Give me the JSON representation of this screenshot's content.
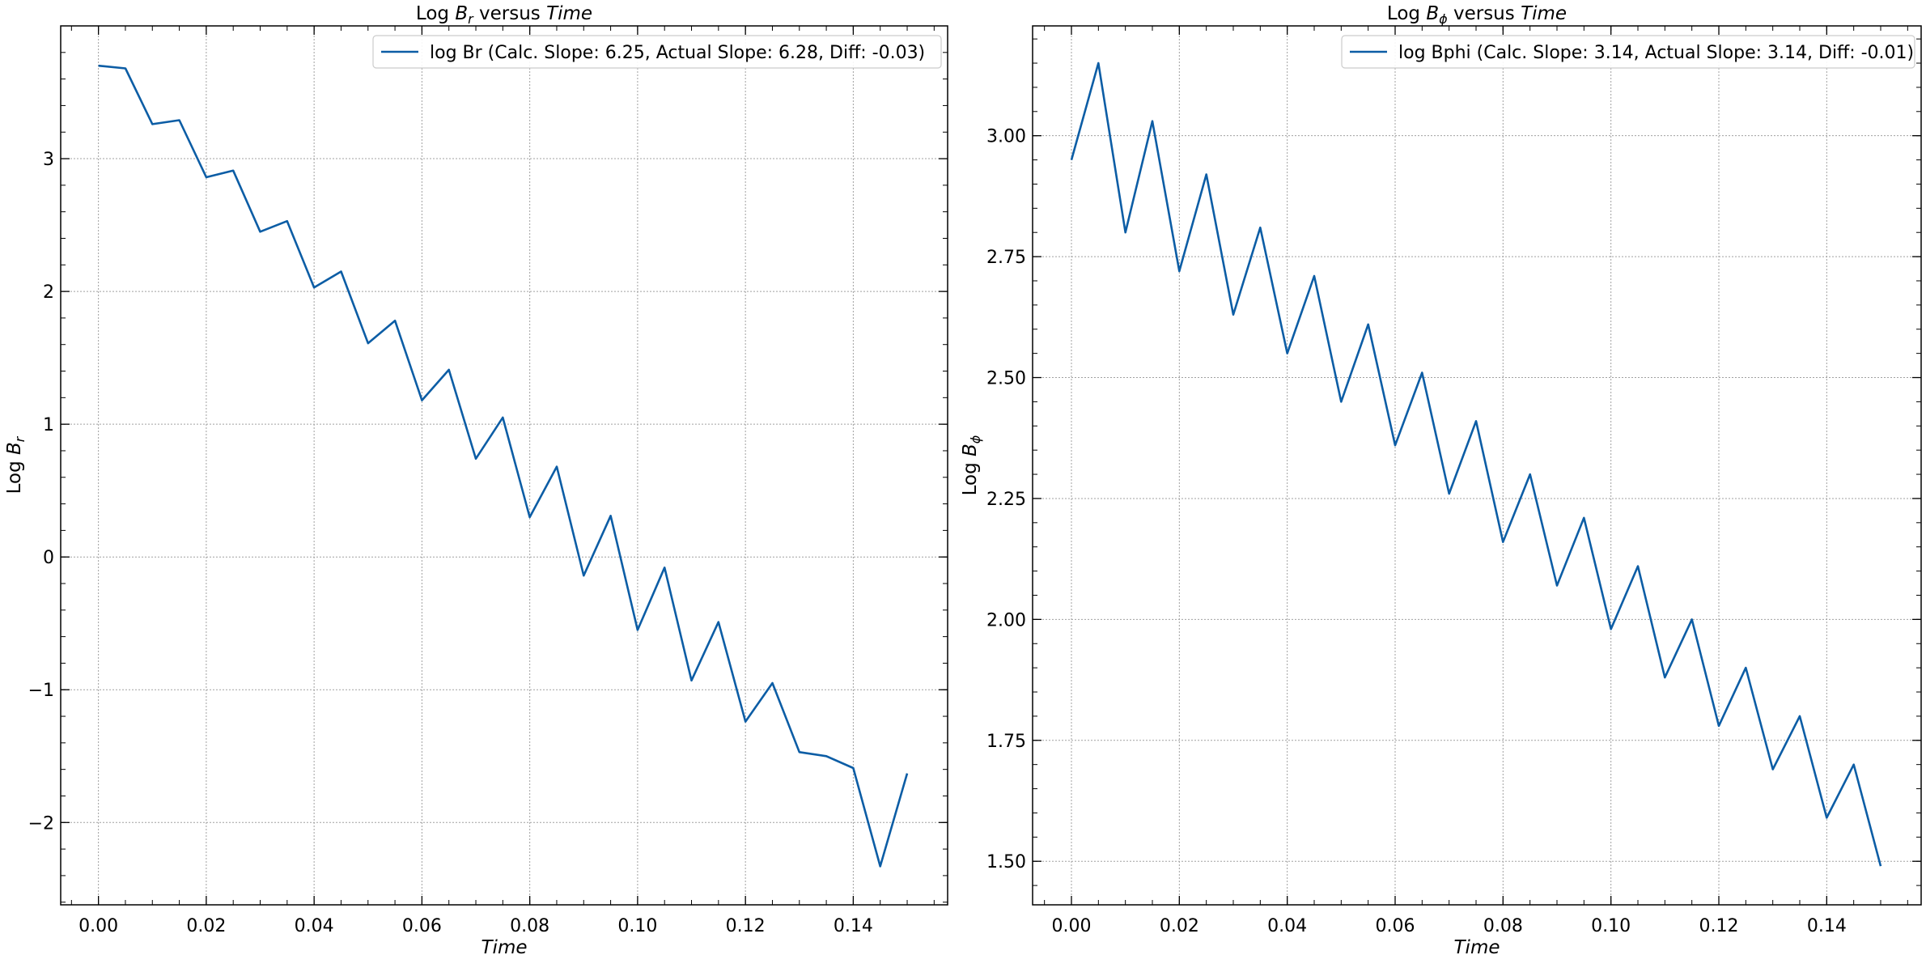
{
  "chart_data": [
    {
      "type": "line",
      "title": {
        "prefix": "Log ",
        "sym": "B",
        "sub": "r",
        "mid": " versus ",
        "italic": "Time"
      },
      "xlabel": "Time",
      "ylabel": {
        "prefix": "Log ",
        "sym": "B",
        "sub": "r"
      },
      "xlim": [
        -0.007,
        0.1575
      ],
      "ylim": [
        -2.62,
        4.0
      ],
      "xticks": [
        0.0,
        0.02,
        0.04,
        0.06,
        0.08,
        0.1,
        0.12,
        0.14
      ],
      "xtick_labels": [
        "0.00",
        "0.02",
        "0.04",
        "0.06",
        "0.08",
        "0.10",
        "0.12",
        "0.14"
      ],
      "yticks": [
        -2,
        -1,
        0,
        1,
        2,
        3
      ],
      "ytick_labels": [
        "−2",
        "−1",
        "0",
        "1",
        "2",
        "3"
      ],
      "grid": true,
      "legend_placement": "top-right",
      "line_color": "#0C5DA5",
      "series": [
        {
          "name": "log Br (Calc. Slope: 6.25, Actual Slope: 6.28, Diff: -0.03)",
          "x": [
            0.0,
            0.005,
            0.01,
            0.015,
            0.02,
            0.025,
            0.03,
            0.035,
            0.04,
            0.045,
            0.05,
            0.055,
            0.06,
            0.065,
            0.07,
            0.075,
            0.08,
            0.085,
            0.09,
            0.095,
            0.1,
            0.105,
            0.11,
            0.115,
            0.12,
            0.125,
            0.13,
            0.135,
            0.14,
            0.145,
            0.15
          ],
          "y": [
            3.7,
            3.68,
            3.26,
            3.29,
            2.86,
            2.91,
            2.45,
            2.53,
            2.03,
            2.15,
            1.61,
            1.78,
            1.18,
            1.41,
            0.74,
            1.05,
            0.3,
            0.68,
            -0.14,
            0.31,
            -0.55,
            -0.08,
            -0.93,
            -0.49,
            -1.24,
            -0.95,
            -1.47,
            -1.5,
            -1.59,
            -2.33,
            -1.63
          ]
        }
      ]
    },
    {
      "type": "line",
      "title": {
        "prefix": "Log ",
        "sym": "B",
        "sub": "ϕ",
        "mid": " versus ",
        "italic": "Time"
      },
      "xlabel": "Time",
      "ylabel": {
        "prefix": "Log ",
        "sym": "B",
        "sub": "ϕ"
      },
      "xlim": [
        -0.0072,
        0.1575
      ],
      "ylim": [
        1.41,
        3.227
      ],
      "xticks": [
        0.0,
        0.02,
        0.04,
        0.06,
        0.08,
        0.1,
        0.12,
        0.14
      ],
      "xtick_labels": [
        "0.00",
        "0.02",
        "0.04",
        "0.06",
        "0.08",
        "0.10",
        "0.12",
        "0.14"
      ],
      "yticks": [
        1.5,
        1.75,
        2.0,
        2.25,
        2.5,
        2.75,
        3.0
      ],
      "ytick_labels": [
        "1.50",
        "1.75",
        "2.00",
        "2.25",
        "2.50",
        "2.75",
        "3.00"
      ],
      "grid": true,
      "legend_placement": "top-right",
      "line_color": "#0C5DA5",
      "series": [
        {
          "name": "log Bphi (Calc. Slope: 3.14, Actual Slope: 3.14, Diff: -0.01)",
          "x": [
            0.0,
            0.005,
            0.01,
            0.015,
            0.02,
            0.025,
            0.03,
            0.035,
            0.04,
            0.045,
            0.05,
            0.055,
            0.06,
            0.065,
            0.07,
            0.075,
            0.08,
            0.085,
            0.09,
            0.095,
            0.1,
            0.105,
            0.11,
            0.115,
            0.12,
            0.125,
            0.13,
            0.135,
            0.14,
            0.145,
            0.15
          ],
          "y": [
            2.95,
            3.15,
            2.8,
            3.03,
            2.72,
            2.92,
            2.63,
            2.81,
            2.55,
            2.71,
            2.45,
            2.61,
            2.36,
            2.51,
            2.26,
            2.41,
            2.16,
            2.3,
            2.07,
            2.21,
            1.98,
            2.11,
            1.88,
            2.0,
            1.78,
            1.9,
            1.69,
            1.8,
            1.59,
            1.7,
            1.49
          ]
        }
      ]
    }
  ]
}
